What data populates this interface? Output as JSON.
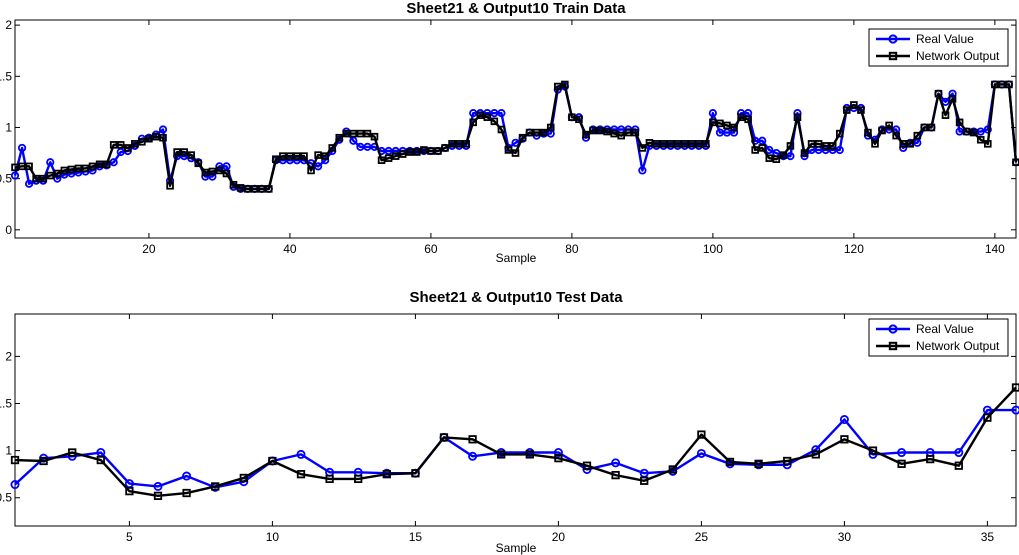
{
  "chart_data": [
    {
      "type": "line",
      "title": "Sheet21 & Output10 Train Data",
      "xlabel": "Sample",
      "ylabel": "",
      "xlim": [
        1,
        143
      ],
      "ylim": [
        -0.08,
        2.05
      ],
      "xticks": [
        20,
        40,
        60,
        80,
        100,
        120,
        140
      ],
      "yticks": [
        0,
        0.5,
        1,
        1.5,
        2
      ],
      "ytick_labels": [
        "0",
        "0.5",
        "1",
        "1.5",
        "2"
      ],
      "grid": false,
      "legend_position": "top-right",
      "x": [
        1,
        2,
        3,
        4,
        5,
        6,
        7,
        8,
        9,
        10,
        11,
        12,
        13,
        14,
        15,
        16,
        17,
        18,
        19,
        20,
        21,
        22,
        23,
        24,
        25,
        26,
        27,
        28,
        29,
        30,
        31,
        32,
        33,
        34,
        35,
        36,
        37,
        38,
        39,
        40,
        41,
        42,
        43,
        44,
        45,
        46,
        47,
        48,
        49,
        50,
        51,
        52,
        53,
        54,
        55,
        56,
        57,
        58,
        59,
        60,
        61,
        62,
        63,
        64,
        65,
        66,
        67,
        68,
        69,
        70,
        71,
        72,
        73,
        74,
        75,
        76,
        77,
        78,
        79,
        80,
        81,
        82,
        83,
        84,
        85,
        86,
        87,
        88,
        89,
        90,
        91,
        92,
        93,
        94,
        95,
        96,
        97,
        98,
        99,
        100,
        101,
        102,
        103,
        104,
        105,
        106,
        107,
        108,
        109,
        110,
        111,
        112,
        113,
        114,
        115,
        116,
        117,
        118,
        119,
        120,
        121,
        122,
        123,
        124,
        125,
        126,
        127,
        128,
        129,
        130,
        131,
        132,
        133,
        134,
        135,
        136,
        137,
        138,
        139,
        140,
        141,
        142,
        143
      ],
      "series": [
        {
          "name": "Real Value",
          "color": "#0000ff",
          "marker": "circle",
          "values": [
            0.53,
            0.8,
            0.45,
            0.48,
            0.48,
            0.66,
            0.5,
            0.54,
            0.55,
            0.56,
            0.57,
            0.58,
            0.62,
            0.63,
            0.66,
            0.76,
            0.77,
            0.82,
            0.89,
            0.9,
            0.93,
            0.98,
            0.48,
            0.72,
            0.72,
            0.7,
            0.66,
            0.52,
            0.52,
            0.62,
            0.62,
            0.42,
            0.4,
            0.4,
            0.4,
            0.4,
            0.4,
            0.68,
            0.68,
            0.68,
            0.68,
            0.68,
            0.65,
            0.62,
            0.68,
            0.77,
            0.88,
            0.96,
            0.87,
            0.81,
            0.81,
            0.81,
            0.77,
            0.77,
            0.77,
            0.77,
            0.77,
            0.77,
            0.77,
            0.77,
            0.77,
            0.8,
            0.82,
            0.82,
            0.82,
            1.14,
            1.14,
            1.14,
            1.14,
            1.14,
            0.8,
            0.85,
            0.89,
            0.95,
            0.92,
            0.94,
            0.94,
            1.37,
            1.4,
            1.1,
            1.1,
            0.9,
            0.98,
            0.98,
            0.98,
            0.98,
            0.98,
            0.98,
            0.98,
            0.58,
            0.82,
            0.82,
            0.82,
            0.82,
            0.82,
            0.82,
            0.82,
            0.82,
            0.82,
            1.14,
            0.95,
            0.95,
            0.95,
            1.14,
            1.14,
            0.87,
            0.87,
            0.78,
            0.75,
            0.72,
            0.72,
            1.14,
            0.72,
            0.78,
            0.78,
            0.78,
            0.78,
            0.78,
            1.19,
            1.19,
            1.19,
            0.92,
            0.88,
            0.98,
            0.98,
            0.98,
            0.8,
            0.85,
            0.85,
            1.0,
            1.0,
            1.33,
            1.25,
            1.33,
            0.96,
            0.96,
            0.96,
            0.96,
            0.98,
            1.42,
            1.42,
            1.42,
            0.66
          ]
        },
        {
          "name": "Network Output",
          "color": "#000000",
          "marker": "square",
          "values": [
            0.61,
            0.62,
            0.62,
            0.5,
            0.5,
            0.53,
            0.55,
            0.58,
            0.59,
            0.6,
            0.6,
            0.62,
            0.64,
            0.64,
            0.83,
            0.83,
            0.8,
            0.84,
            0.86,
            0.89,
            0.91,
            0.9,
            0.43,
            0.76,
            0.76,
            0.73,
            0.65,
            0.56,
            0.57,
            0.58,
            0.55,
            0.44,
            0.41,
            0.4,
            0.4,
            0.4,
            0.4,
            0.69,
            0.72,
            0.72,
            0.72,
            0.72,
            0.58,
            0.73,
            0.72,
            0.8,
            0.9,
            0.94,
            0.94,
            0.94,
            0.94,
            0.91,
            0.68,
            0.7,
            0.72,
            0.74,
            0.76,
            0.76,
            0.78,
            0.77,
            0.77,
            0.8,
            0.84,
            0.84,
            0.84,
            1.05,
            1.12,
            1.1,
            1.06,
            0.98,
            0.78,
            0.75,
            0.9,
            0.95,
            0.95,
            0.95,
            1.0,
            1.4,
            1.42,
            1.1,
            1.08,
            0.93,
            0.97,
            0.97,
            0.96,
            0.94,
            0.92,
            0.95,
            0.95,
            0.8,
            0.85,
            0.84,
            0.84,
            0.84,
            0.84,
            0.84,
            0.84,
            0.84,
            0.84,
            1.05,
            1.04,
            1.02,
            1.0,
            1.1,
            1.08,
            0.78,
            0.8,
            0.7,
            0.69,
            0.73,
            0.82,
            1.1,
            0.75,
            0.84,
            0.84,
            0.82,
            0.82,
            0.94,
            1.17,
            1.22,
            1.17,
            0.95,
            0.84,
            0.97,
            1.02,
            0.92,
            0.84,
            0.84,
            0.92,
            1.0,
            1.0,
            1.33,
            1.12,
            1.28,
            1.05,
            0.96,
            0.95,
            0.88,
            0.84,
            1.42,
            1.42,
            1.42,
            0.66
          ]
        }
      ]
    },
    {
      "type": "line",
      "title": "Sheet21 & Output10 Test Data",
      "xlabel": "Sample",
      "ylabel": "",
      "xlim": [
        1,
        36
      ],
      "ylim": [
        0.2,
        2.45
      ],
      "xticks": [
        5,
        10,
        15,
        20,
        25,
        30,
        35
      ],
      "yticks": [
        0.5,
        1,
        1.5,
        2
      ],
      "ytick_labels": [
        "0.5",
        "1",
        "1.5",
        "2"
      ],
      "grid": false,
      "legend_position": "top-right",
      "x": [
        1,
        2,
        3,
        4,
        5,
        6,
        7,
        8,
        9,
        10,
        11,
        12,
        13,
        14,
        15,
        16,
        17,
        18,
        19,
        20,
        21,
        22,
        23,
        24,
        25,
        26,
        27,
        28,
        29,
        30,
        31,
        32,
        33,
        34,
        35,
        36
      ],
      "series": [
        {
          "name": "Real Value",
          "color": "#0000ff",
          "marker": "circle",
          "values": [
            0.64,
            0.92,
            0.94,
            0.98,
            0.65,
            0.62,
            0.73,
            0.61,
            0.67,
            0.89,
            0.96,
            0.77,
            0.77,
            0.76,
            0.76,
            1.14,
            0.94,
            0.98,
            0.98,
            0.98,
            0.8,
            0.87,
            0.76,
            0.78,
            0.97,
            0.86,
            0.85,
            0.85,
            1.01,
            1.33,
            0.96,
            0.98,
            0.98,
            0.98,
            1.43,
            1.43
          ]
        },
        {
          "name": "Network Output",
          "color": "#000000",
          "marker": "square",
          "values": [
            0.9,
            0.89,
            0.98,
            0.9,
            0.57,
            0.52,
            0.55,
            0.62,
            0.71,
            0.89,
            0.75,
            0.7,
            0.7,
            0.75,
            0.76,
            1.14,
            1.12,
            0.96,
            0.96,
            0.92,
            0.84,
            0.74,
            0.68,
            0.8,
            1.17,
            0.88,
            0.86,
            0.89,
            0.96,
            1.12,
            1.0,
            0.86,
            0.91,
            0.84,
            1.35,
            1.67
          ]
        }
      ]
    }
  ]
}
